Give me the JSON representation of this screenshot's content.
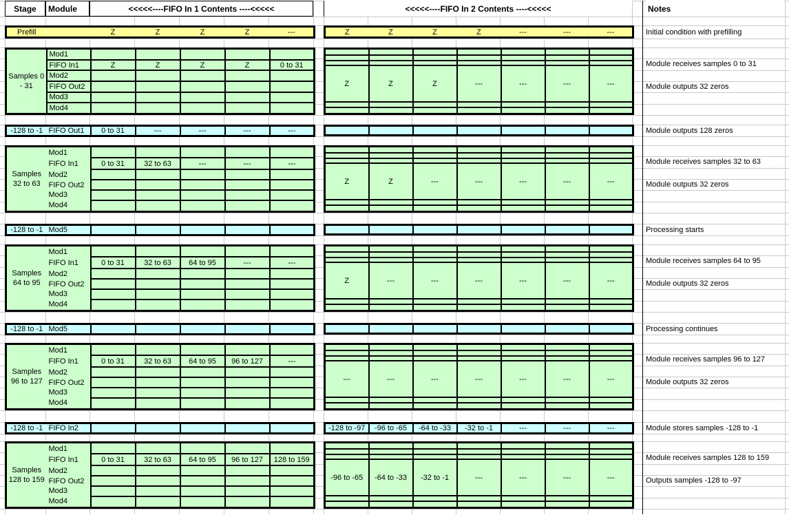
{
  "title_row": {
    "stage": "Stage",
    "module": "Module",
    "fifo1_header": "<<<<<----FIFO In 1 Contents ----<<<<<",
    "fifo2_header": "<<<<<----FIFO In 2 Contents ----<<<<<",
    "notes": "Notes"
  },
  "colors": {
    "prefill_fill": "#FFFF99",
    "stage_block_fill": "#CCFFCC",
    "interlude_fill": "#CCFFFF",
    "grid_line": "#C9C9C9",
    "cell_border": "#000000"
  },
  "prefill": {
    "stage": "Prefill",
    "fifo1": [
      "Z",
      "Z",
      "Z",
      "Z",
      "---"
    ],
    "fifo2": [
      "Z",
      "Z",
      "Z",
      "Z",
      "---",
      "---",
      "---"
    ],
    "note": "Initial condition with prefilling"
  },
  "stages": [
    {
      "stage_lines": [
        "Samples 0",
        "- 31"
      ],
      "modules_boxed": true,
      "rows": [
        {
          "module": "Mod1",
          "fifo1": [],
          "fifo2": [],
          "note": ""
        },
        {
          "module": "FIFO In1",
          "fifo1": [
            "Z",
            "Z",
            "Z",
            "Z",
            "0 to 31"
          ],
          "fifo2": [],
          "note": "Module receives samples 0 to 31"
        },
        {
          "module": "Mod2",
          "fifo1": [],
          "fifo2": [],
          "note": ""
        },
        {
          "module": "FIFO Out2",
          "fifo1": [],
          "fifo2": [
            "Z",
            "Z",
            "Z",
            "---",
            "---",
            "---",
            "---"
          ],
          "note": "Module outputs 32 zeros"
        },
        {
          "module": "Mod3",
          "fifo1": [],
          "fifo2": [],
          "note": ""
        },
        {
          "module": "Mod4",
          "fifo1": [],
          "fifo2": [],
          "note": ""
        }
      ]
    },
    {
      "stage_lines": [
        "Samples",
        "32 to 63"
      ],
      "modules_boxed": false,
      "rows": [
        {
          "module": "Mod1",
          "fifo1": [],
          "fifo2": [],
          "note": ""
        },
        {
          "module": "FIFO In1",
          "fifo1": [
            "0 to 31",
            "32 to 63",
            "---",
            "---",
            "---"
          ],
          "fifo2": [],
          "note": "Module receives samples 32 to 63"
        },
        {
          "module": "Mod2",
          "fifo1": [],
          "fifo2": [],
          "note": ""
        },
        {
          "module": "FIFO Out2",
          "fifo1": [],
          "fifo2": [
            "Z",
            "Z",
            "---",
            "---",
            "---",
            "---",
            "---"
          ],
          "note": "Module outputs 32 zeros"
        },
        {
          "module": "Mod3",
          "fifo1": [],
          "fifo2": [],
          "note": ""
        },
        {
          "module": "Mod4",
          "fifo1": [],
          "fifo2": [],
          "note": ""
        }
      ]
    },
    {
      "stage_lines": [
        "Samples",
        "64 to 95"
      ],
      "modules_boxed": false,
      "rows": [
        {
          "module": "Mod1",
          "fifo1": [],
          "fifo2": [],
          "note": ""
        },
        {
          "module": "FIFO In1",
          "fifo1": [
            "0 to 31",
            "32 to 63",
            "64 to 95",
            "---",
            "---"
          ],
          "fifo2": [],
          "note": "Module receives samples 64 to 95"
        },
        {
          "module": "Mod2",
          "fifo1": [],
          "fifo2": [],
          "note": ""
        },
        {
          "module": "FIFO Out2",
          "fifo1": [],
          "fifo2": [
            "Z",
            "---",
            "---",
            "---",
            "---",
            "---",
            "---"
          ],
          "note": "Module outputs 32 zeros"
        },
        {
          "module": "Mod3",
          "fifo1": [],
          "fifo2": [],
          "note": ""
        },
        {
          "module": "Mod4",
          "fifo1": [],
          "fifo2": [],
          "note": ""
        }
      ]
    },
    {
      "stage_lines": [
        "Samples",
        "96 to 127"
      ],
      "modules_boxed": false,
      "rows": [
        {
          "module": "Mod1",
          "fifo1": [],
          "fifo2": [],
          "note": ""
        },
        {
          "module": "FIFO In1",
          "fifo1": [
            "0 to 31",
            "32 to 63",
            "64 to 95",
            "96 to 127",
            "---"
          ],
          "fifo2": [],
          "note": "Module receives samples 96 to 127"
        },
        {
          "module": "Mod2",
          "fifo1": [],
          "fifo2": [],
          "note": ""
        },
        {
          "module": "FIFO Out2",
          "fifo1": [],
          "fifo2": [
            "---",
            "---",
            "---",
            "---",
            "---",
            "---",
            "---"
          ],
          "note": "Module outputs 32 zeros"
        },
        {
          "module": "Mod3",
          "fifo1": [],
          "fifo2": [],
          "note": ""
        },
        {
          "module": "Mod4",
          "fifo1": [],
          "fifo2": [],
          "note": ""
        }
      ]
    },
    {
      "stage_lines": [
        "Samples",
        "128 to 159"
      ],
      "modules_boxed": false,
      "rows": [
        {
          "module": "Mod1",
          "fifo1": [],
          "fifo2": [],
          "note": ""
        },
        {
          "module": "FIFO In1",
          "fifo1": [
            "0 to 31",
            "32 to 63",
            "64 to 95",
            "96 to 127",
            "128 to 159"
          ],
          "fifo2": [],
          "note": "Module receives samples 128 to 159"
        },
        {
          "module": "Mod2",
          "fifo1": [],
          "fifo2": [],
          "note": ""
        },
        {
          "module": "FIFO Out2",
          "fifo1": [],
          "fifo2": [
            "-96 to -65",
            "-64 to -33",
            "-32 to -1",
            "---",
            "---",
            "---",
            "---"
          ],
          "note": "Outputs samples -128 to -97"
        },
        {
          "module": "Mod3",
          "fifo1": [],
          "fifo2": [],
          "note": ""
        },
        {
          "module": "Mod4",
          "fifo1": [],
          "fifo2": [],
          "note": ""
        }
      ]
    }
  ],
  "interludes": [
    {
      "stage": "-128 to -1",
      "module": "FIFO Out1",
      "fifo1": [
        "0 to 31",
        "---",
        "---",
        "---",
        "---"
      ],
      "fifo2": [],
      "note": "Module outputs 128 zeros"
    },
    {
      "stage": "-128 to -1",
      "module": "Mod5",
      "fifo1": [],
      "fifo2": [],
      "note": "Processing starts"
    },
    {
      "stage": "-128 to -1",
      "module": "Mod5",
      "fifo1": [],
      "fifo2": [],
      "note": "Processing continues"
    },
    {
      "stage": "-128 to -1",
      "module": "FIFO In2",
      "fifo1": [],
      "fifo2": [
        "-128 to -97",
        "-96 to -65",
        "-64 to -33",
        "-32 to -1",
        "---",
        "---",
        "---"
      ],
      "note": "Module stores samples -128 to -1"
    }
  ]
}
